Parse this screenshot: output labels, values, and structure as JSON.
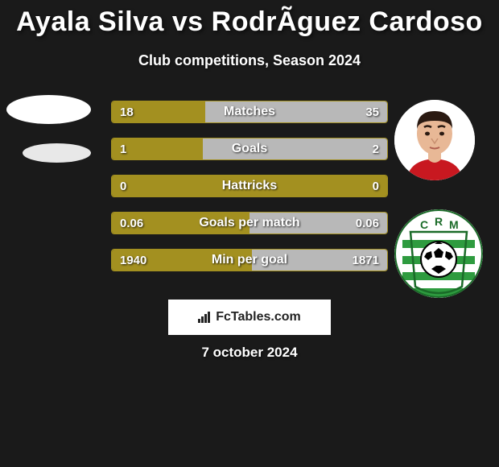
{
  "title": "Ayala Silva vs RodrÃ­guez Cardoso",
  "subtitle": "Club competitions, Season 2024",
  "colors": {
    "background": "#1a1a1a",
    "left_fill": "#a39020",
    "right_fill": "#b8b8b8",
    "border": "#a39020",
    "text": "#ffffff"
  },
  "stats": [
    {
      "label": "Matches",
      "left_val": "18",
      "right_val": "35",
      "left_pct": 34,
      "right_pct": 66
    },
    {
      "label": "Goals",
      "left_val": "1",
      "right_val": "2",
      "left_pct": 33,
      "right_pct": 67
    },
    {
      "label": "Hattricks",
      "left_val": "0",
      "right_val": "0",
      "left_pct": 100,
      "right_pct": 0
    },
    {
      "label": "Goals per match",
      "left_val": "0.06",
      "right_val": "0.06",
      "left_pct": 50,
      "right_pct": 50
    },
    {
      "label": "Min per goal",
      "left_val": "1940",
      "right_val": "1871",
      "left_pct": 51,
      "right_pct": 49
    }
  ],
  "footer_brand": "FcTables.com",
  "footer_date": "7 october 2024",
  "club_badge": {
    "letters": "C R M",
    "bg": "#ffffff",
    "stripe": "#2e9b3f",
    "ball": "#000000"
  }
}
